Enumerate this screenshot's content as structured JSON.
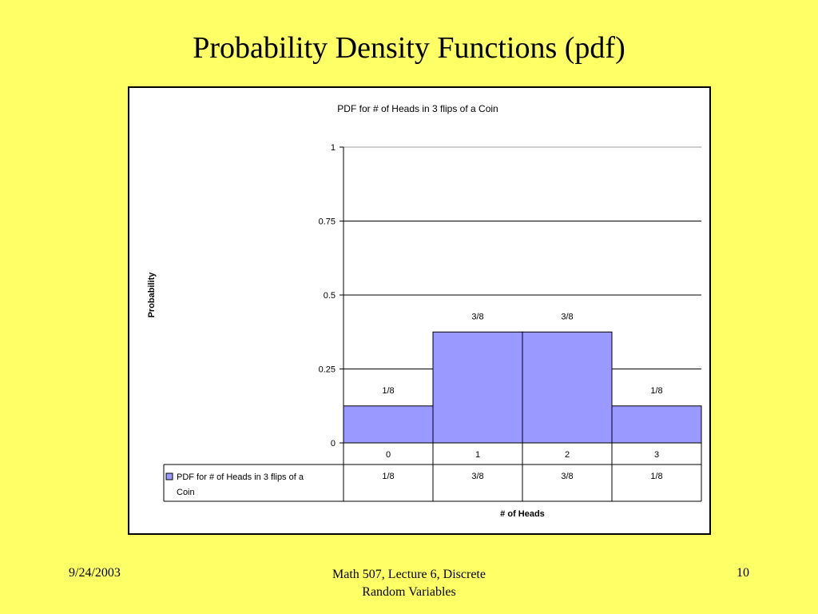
{
  "slide": {
    "title": "Probability Density Functions (pdf)",
    "footer_date": "9/24/2003",
    "footer_course_line1": "Math 507, Lecture 6, Discrete",
    "footer_course_line2": "Random Variables",
    "footer_page": "10"
  },
  "colors": {
    "background": "#ffff66",
    "bar_fill": "#9999ff",
    "bar_stroke": "#000000"
  },
  "chart_data": {
    "type": "bar",
    "title": "PDF for # of Heads in 3 flips of a Coin",
    "xlabel": "# of Heads",
    "ylabel": "Probability",
    "categories": [
      "0",
      "1",
      "2",
      "3"
    ],
    "series": [
      {
        "name": "PDF for # of Heads in 3 flips of a Coin",
        "values": [
          0.125,
          0.375,
          0.375,
          0.125
        ],
        "labels": [
          "1/8",
          "3/8",
          "3/8",
          "1/8"
        ]
      }
    ],
    "yticks": [
      0,
      0.25,
      0.5,
      0.75,
      1
    ],
    "ytick_labels": [
      "0",
      "0.25",
      "0.5",
      "0.75",
      "1"
    ],
    "ylim": [
      0,
      1
    ],
    "grid": true,
    "legend": "data-table",
    "legend_label_line1": "PDF for # of Heads in 3 flips of a",
    "legend_label_line2": "Coin"
  }
}
